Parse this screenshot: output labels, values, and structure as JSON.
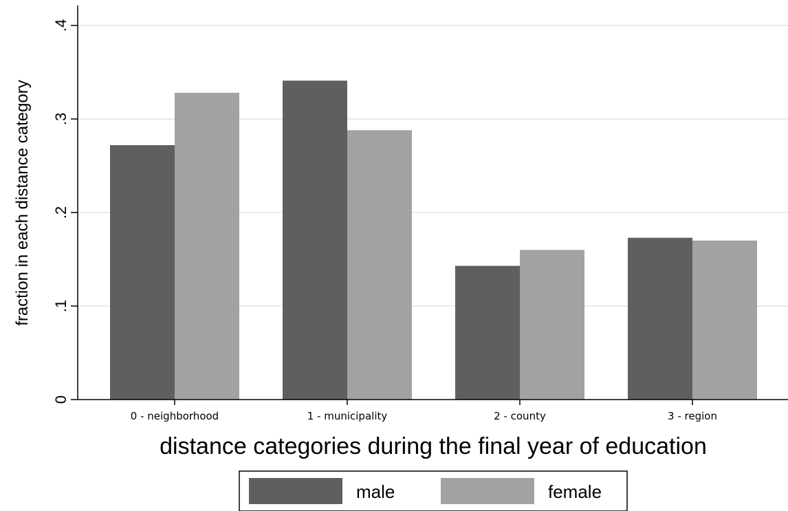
{
  "chart_data": {
    "type": "bar",
    "title": "",
    "xlabel": "distance categories during the final year of education",
    "ylabel": "fraction in each distance category",
    "categories": [
      "0 - neighborhood",
      "1 - municipality",
      "2 - county",
      "3 - region"
    ],
    "series": [
      {
        "name": "male",
        "values": [
          0.272,
          0.341,
          0.143,
          0.173
        ],
        "color": "#5f5f5f"
      },
      {
        "name": "female",
        "values": [
          0.328,
          0.288,
          0.16,
          0.17
        ],
        "color": "#a2a2a2"
      }
    ],
    "ylim": [
      0,
      0.4
    ],
    "yticks": [
      0,
      0.1,
      0.2,
      0.3,
      0.4
    ],
    "ytick_labels": [
      "0",
      ".1",
      ".2",
      ".3",
      ".4"
    ],
    "grid": true,
    "legend_position": "bottom"
  }
}
